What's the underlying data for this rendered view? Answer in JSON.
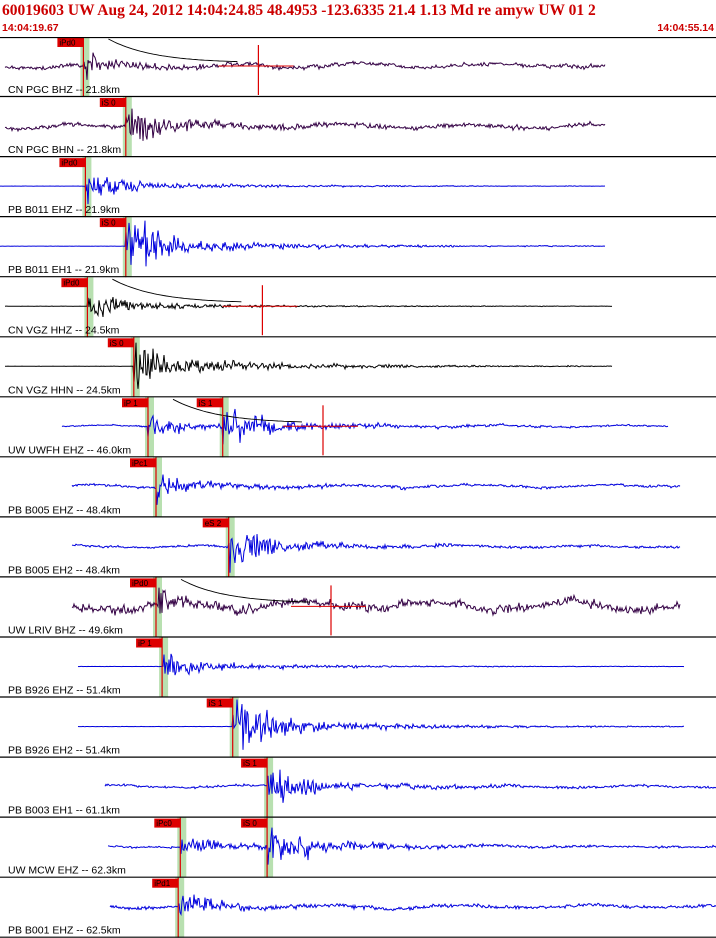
{
  "header": {
    "title": "60019603 UW Aug 24, 2012 14:04:24.85   48.4953 -123.6335 21.4 1.13 Md re amyw UW 01   2",
    "start_time": "14:04:19.67",
    "end_time": "14:04:55.14"
  },
  "colors": {
    "header_text": "#cc0000",
    "pick_box": "#dd0000",
    "pick_line": "#dd0000",
    "green_band": "#b8e0b0",
    "channel_blue": "#0000dd",
    "channel_black": "#000000",
    "channel_purple": "#330044",
    "coda": "#dd0000",
    "separator": "#000000"
  },
  "chart_data": {
    "type": "line",
    "title": "60019603 UW Aug 24, 2012 14:04:24.85   48.4953 -123.6335 21.4 1.13 Md re amyw UW 01   2",
    "xlabel": "",
    "ylabel": "",
    "x_range": [
      "14:04:19.67",
      "14:04:55.14"
    ],
    "grid": false,
    "traces": [
      {
        "label": "CN PGC BHZ -- 21.8km",
        "color_key": "channel_purple",
        "picks": [
          {
            "label": "iPd0",
            "time": "14:04:23.8"
          }
        ],
        "coda": true,
        "noise": 0.9
      },
      {
        "label": "CN PGC BHN -- 21.8km",
        "color_key": "channel_purple",
        "picks": [
          {
            "label": "iS 0",
            "time": "14:04:25.9"
          }
        ],
        "coda": false,
        "noise": 0.9
      },
      {
        "label": "PB B011 EHZ -- 21.9km",
        "color_key": "channel_blue",
        "picks": [
          {
            "label": "iPd0",
            "time": "14:04:23.9"
          }
        ],
        "coda": false,
        "noise": 0.05
      },
      {
        "label": "PB B011 EH1 -- 21.9km",
        "color_key": "channel_blue",
        "picks": [
          {
            "label": "iS 0",
            "time": "14:04:25.9"
          }
        ],
        "coda": false,
        "noise": 0.05
      },
      {
        "label": "CN VGZ HHZ -- 24.5km",
        "color_key": "channel_black",
        "picks": [
          {
            "label": "iPd0",
            "time": "14:04:24.0"
          }
        ],
        "coda": true,
        "noise": 0.08
      },
      {
        "label": "CN VGZ HHN -- 24.5km",
        "color_key": "channel_black",
        "picks": [
          {
            "label": "iS 0",
            "time": "14:04:26.3"
          }
        ],
        "coda": false,
        "noise": 0.08
      },
      {
        "label": "UW UWFH EHZ -- 46.0km",
        "color_key": "channel_blue",
        "picks": [
          {
            "label": "iP 1",
            "time": "14:04:27.0"
          },
          {
            "label": "iS 1",
            "time": "14:04:30.7"
          }
        ],
        "coda": true,
        "noise": 0.35
      },
      {
        "label": "PB B005 EHZ -- 48.4km",
        "color_key": "channel_blue",
        "picks": [
          {
            "label": "iPc1",
            "time": "14:04:27.4"
          }
        ],
        "coda": false,
        "noise": 0.55
      },
      {
        "label": "PB B005 EH2 -- 48.4km",
        "color_key": "channel_blue",
        "picks": [
          {
            "label": "eS 2",
            "time": "14:04:31.0"
          }
        ],
        "coda": false,
        "noise": 0.45
      },
      {
        "label": "UW LRIV BHZ -- 49.6km",
        "color_key": "channel_purple",
        "picks": [
          {
            "label": "iPd0",
            "time": "14:04:27.4"
          }
        ],
        "coda": true,
        "noise": 2.0
      },
      {
        "label": "PB B926 EHZ -- 51.4km",
        "color_key": "channel_blue",
        "picks": [
          {
            "label": "iP 1",
            "time": "14:04:27.7"
          }
        ],
        "coda": false,
        "noise": 0.06
      },
      {
        "label": "PB B926 EH2 -- 51.4km",
        "color_key": "channel_blue",
        "picks": [
          {
            "label": "iS 1",
            "time": "14:04:31.2"
          }
        ],
        "coda": false,
        "noise": 0.06
      },
      {
        "label": "PB B003 EH1 -- 61.1km",
        "color_key": "channel_blue",
        "picks": [
          {
            "label": "iS 1",
            "time": "14:04:32.9"
          }
        ],
        "coda": false,
        "noise": 0.5
      },
      {
        "label": "UW MCW EHZ -- 62.3km",
        "color_key": "channel_blue",
        "picks": [
          {
            "label": "iPc0",
            "time": "14:04:28.6"
          },
          {
            "label": "iS 0",
            "time": "14:04:32.9"
          }
        ],
        "coda": false,
        "noise": 0.4
      },
      {
        "label": "PB B001 EHZ -- 62.5km",
        "color_key": "channel_blue",
        "picks": [
          {
            "label": "iPd1",
            "time": "14:04:28.5"
          }
        ],
        "coda": false,
        "noise": 0.7
      }
    ]
  }
}
